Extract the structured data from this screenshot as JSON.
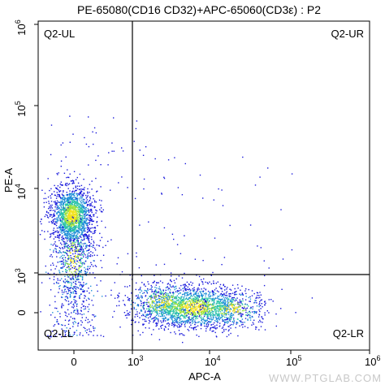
{
  "chart_data": {
    "type": "scatter",
    "title": "PE-65080(CD16 CD32)+APC-65060(CD3ε) : P2",
    "xlabel": "APC-A",
    "ylabel": "PE-A",
    "scale": "biexponential (log above 10^3, linear near 0)",
    "x_ticks": [
      {
        "base": "0",
        "exp": ""
      },
      {
        "base": "10",
        "exp": "3"
      },
      {
        "base": "10",
        "exp": "4"
      },
      {
        "base": "10",
        "exp": "5"
      },
      {
        "base": "10",
        "exp": "6"
      }
    ],
    "y_ticks": [
      {
        "base": "0",
        "exp": ""
      },
      {
        "base": "10",
        "exp": "3"
      },
      {
        "base": "10",
        "exp": "4"
      },
      {
        "base": "10",
        "exp": "5"
      },
      {
        "base": "10",
        "exp": "6"
      }
    ],
    "gate": {
      "x_threshold": 1000,
      "y_threshold": 800
    },
    "quadrants": [
      "Q2-UL",
      "Q2-UR",
      "Q2-LL",
      "Q2-LR"
    ],
    "populations": [
      {
        "name": "Q2-UL cluster",
        "x_center": 0,
        "y_center": 4000,
        "approx_share": "large"
      },
      {
        "name": "Q2-LR cluster",
        "x_center": 6000,
        "y_center": 0,
        "approx_share": "large"
      }
    ],
    "density_colors": [
      "#1a1adb",
      "#1f8fd8",
      "#2bc4a8",
      "#9be23c",
      "#f2e21c"
    ],
    "grid": false
  },
  "watermark": "WWW.PTGLAB.COM"
}
